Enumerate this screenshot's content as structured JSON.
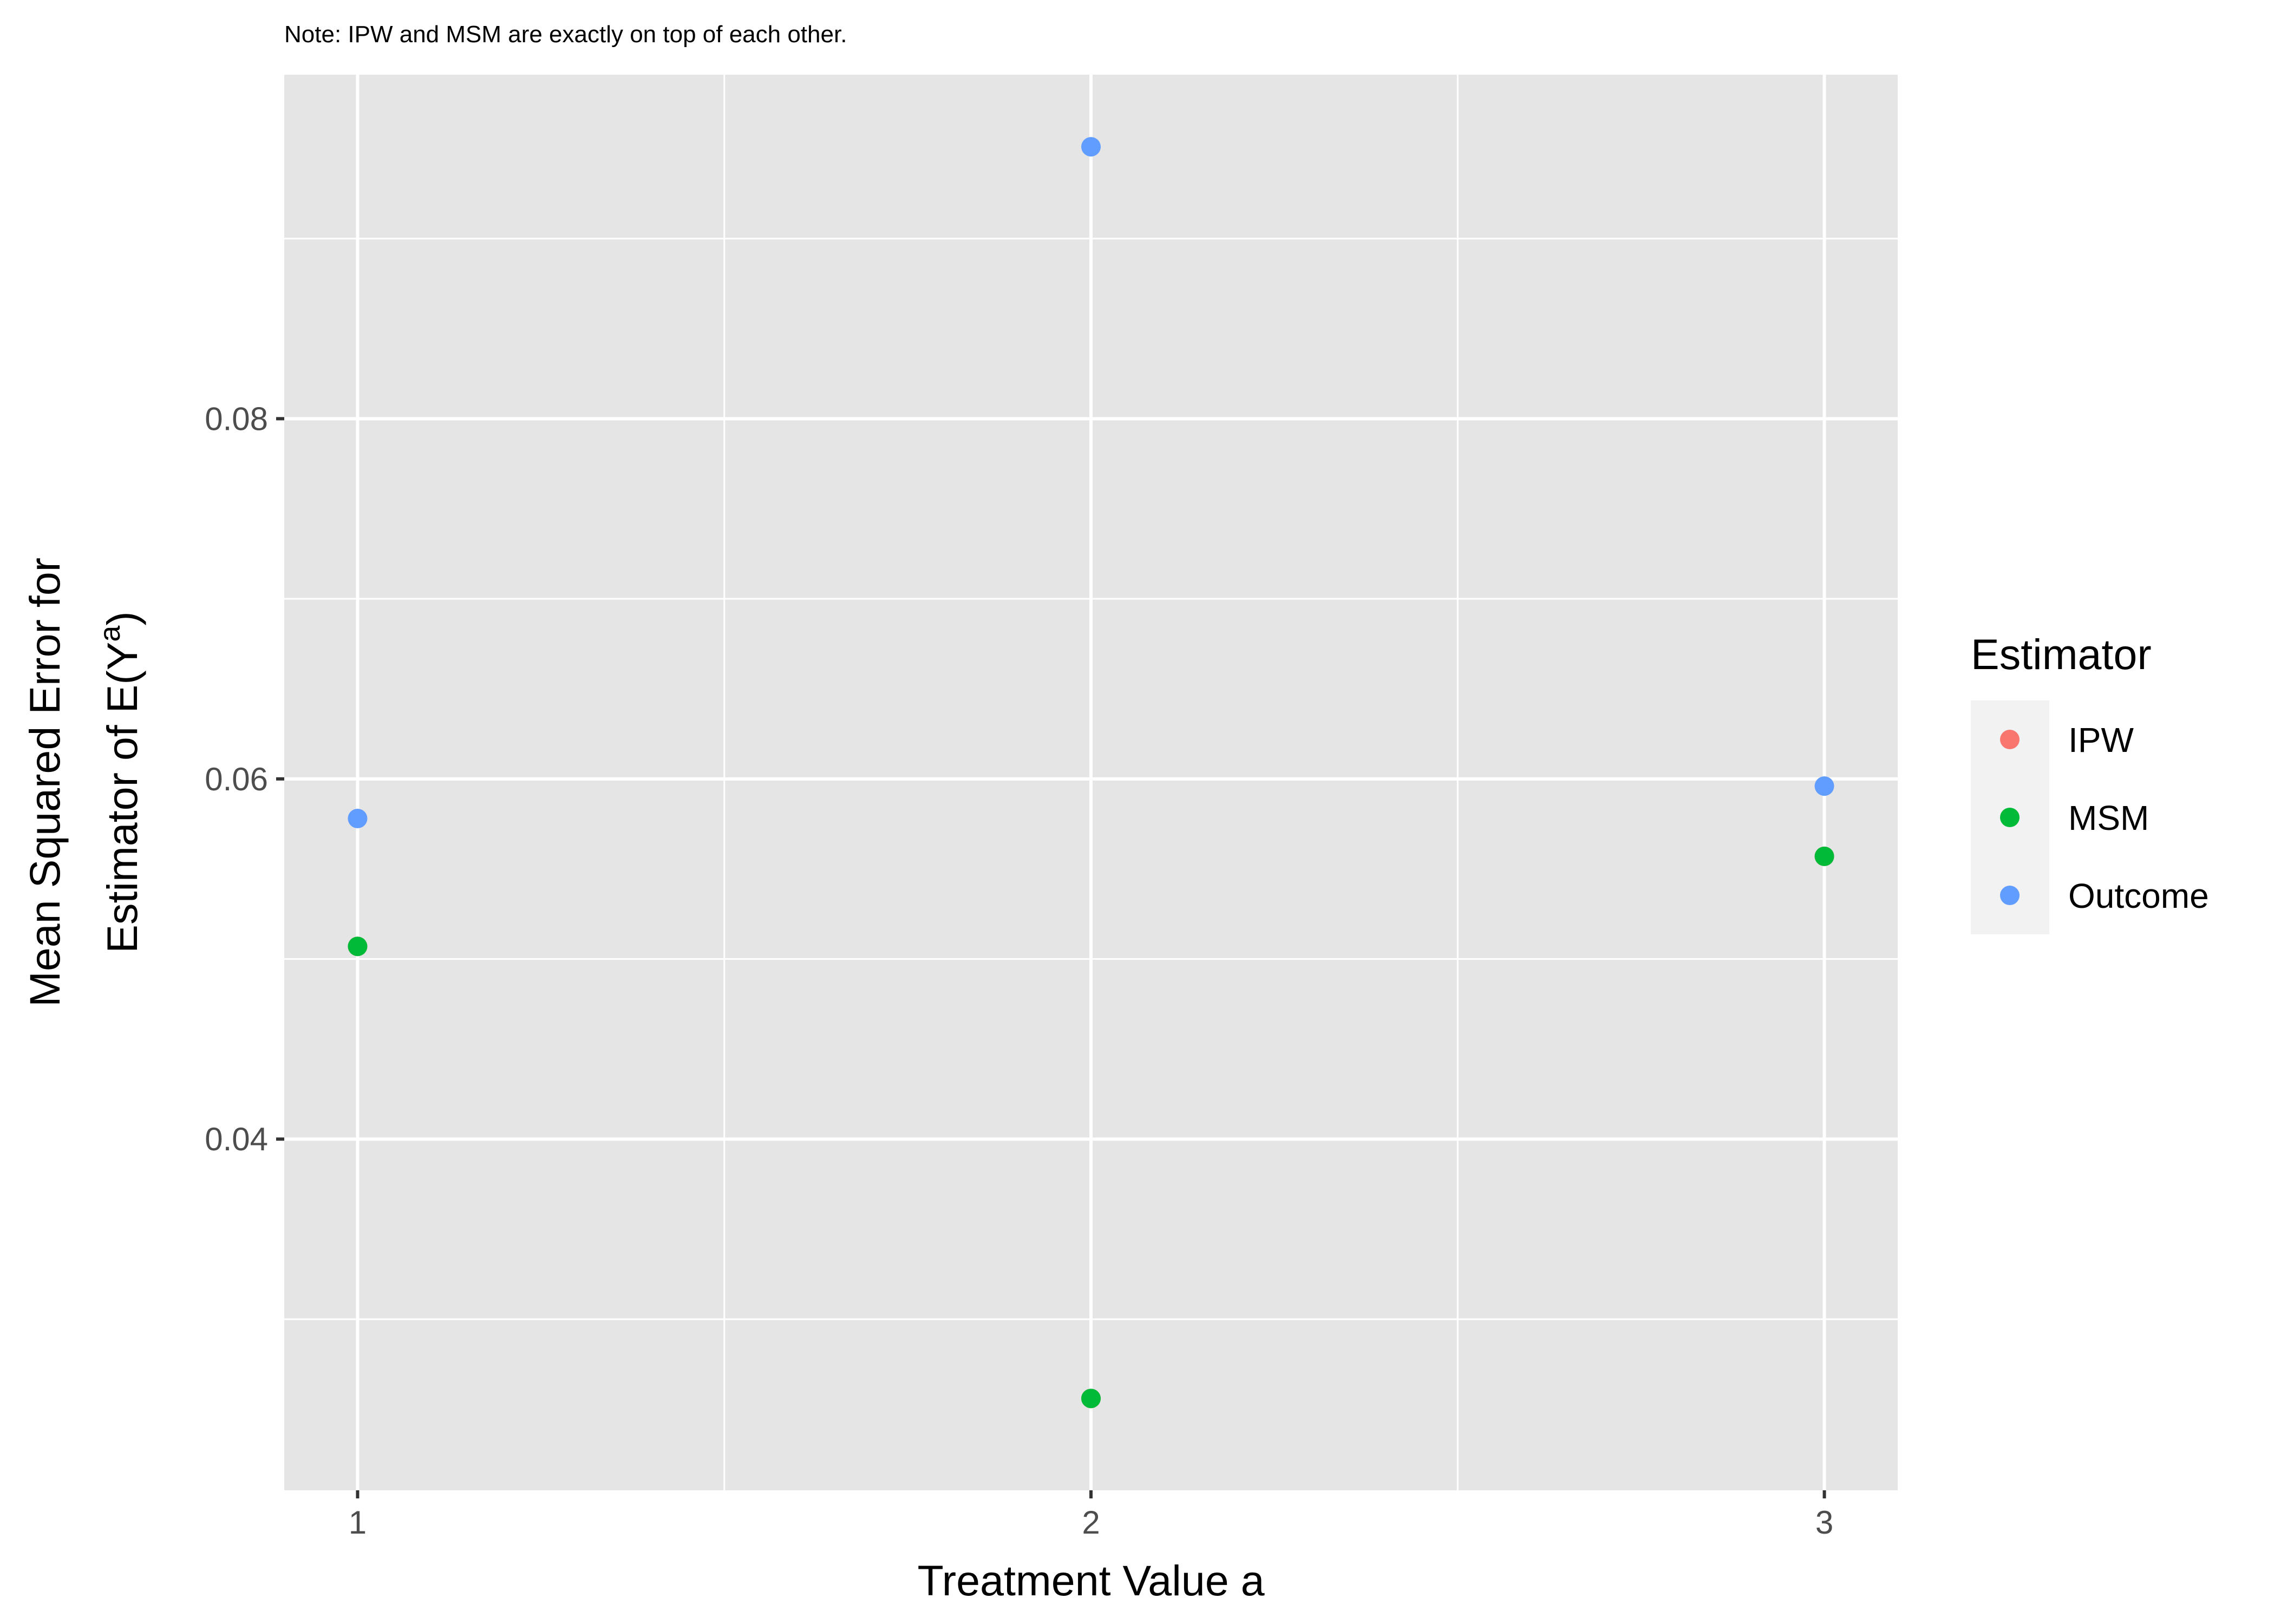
{
  "note": "Note: IPW and MSM are exactly on top of each other.",
  "chart_data": {
    "type": "scatter",
    "xlabel": "Treatment Value a",
    "ylabel_line1": "Mean Squared Error for",
    "ylabel_line2_prefix": "Estimator of  E(Y",
    "ylabel_line2_sup": "a",
    "ylabel_line2_suffix": ")",
    "x_ticks": [
      1,
      2,
      3
    ],
    "x_tick_labels": [
      "1",
      "2",
      "3"
    ],
    "y_ticks": [
      0.04,
      0.06,
      0.08
    ],
    "y_tick_labels": [
      "0.04",
      "0.06",
      "0.08"
    ],
    "xlim": [
      0.9,
      3.1
    ],
    "ylim": [
      0.0205,
      0.0991
    ],
    "grid": true,
    "background": "#e5e5e5",
    "legend": {
      "title": "Estimator",
      "position": "right"
    },
    "series": [
      {
        "name": "IPW",
        "color": "#f8766d",
        "x": [
          1,
          2,
          3
        ],
        "y": [
          0.0507,
          0.0256,
          0.0557
        ]
      },
      {
        "name": "MSM",
        "color": "#00ba38",
        "x": [
          1,
          2,
          3
        ],
        "y": [
          0.0507,
          0.0256,
          0.0557
        ]
      },
      {
        "name": "Outcome",
        "color": "#619cff",
        "x": [
          1,
          2,
          3
        ],
        "y": [
          0.0578,
          0.0951,
          0.0596
        ]
      }
    ]
  }
}
